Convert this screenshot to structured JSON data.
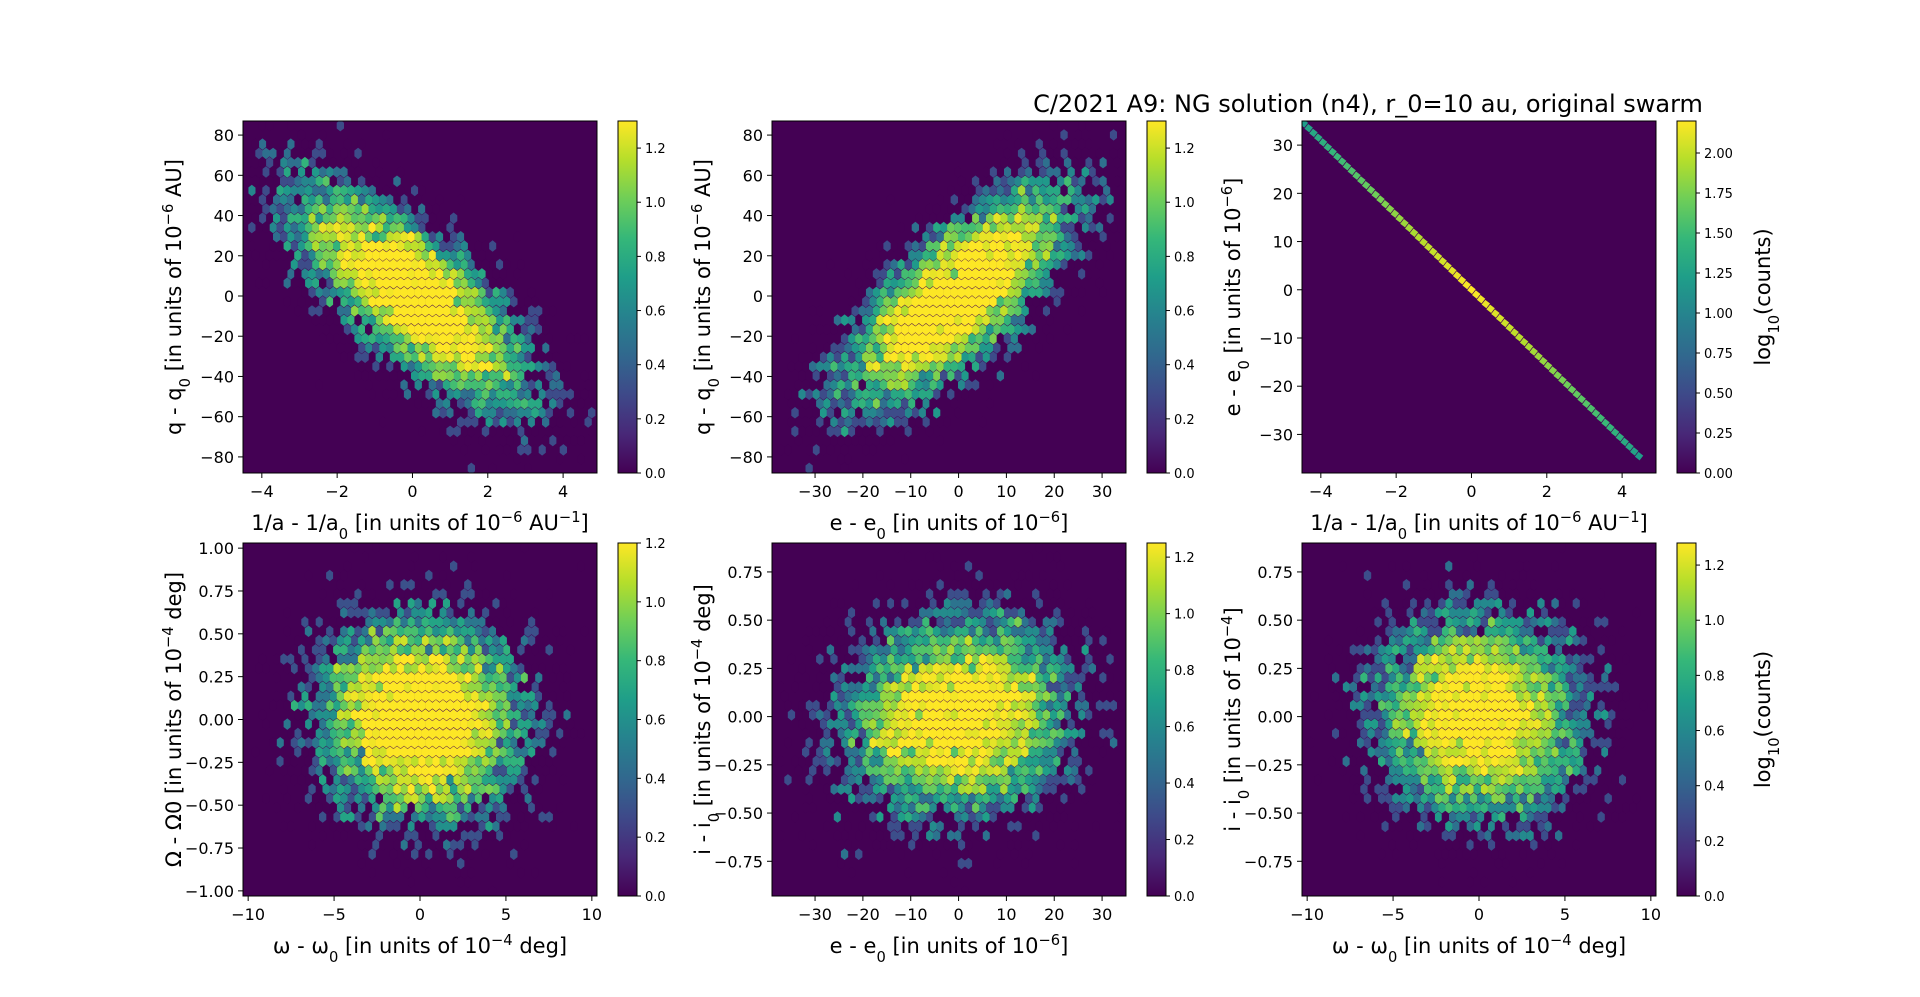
{
  "figure": {
    "title": "C/2021 A9: NG solution (n4), r_0=10 au, original swarm",
    "colormap": [
      "#440154",
      "#482878",
      "#3e4989",
      "#31688e",
      "#26828e",
      "#1f9e89",
      "#35b779",
      "#6ece58",
      "#b5de2b",
      "#fde725"
    ],
    "background_color": "#440154"
  },
  "chart_data": [
    {
      "type": "hexbin",
      "xlabel": "1/a - 1/a0 [in units of 10^-6 AU^-1]",
      "ylabel": "q - q0 [in units of 10^-6 AU]",
      "xlim": [
        -4.5,
        4.9
      ],
      "ylim": [
        -88,
        87
      ],
      "xticks": [
        -4,
        -2,
        0,
        2,
        4
      ],
      "yticks": [
        -80,
        -60,
        -40,
        -20,
        0,
        20,
        40,
        60,
        80
      ],
      "distribution": {
        "sx": 1.6,
        "sy": 28,
        "rho": -0.75,
        "n": 7000
      },
      "colorbar": {
        "max": 1.3,
        "ticks": [
          0.0,
          0.2,
          0.4,
          0.6,
          0.8,
          1.0,
          1.2
        ],
        "label": ""
      }
    },
    {
      "type": "hexbin",
      "xlabel": "e - e0 [in units of 10^-6]",
      "ylabel": "q - q0 [in units of 10^-6 AU]",
      "xlim": [
        -39,
        35
      ],
      "ylim": [
        -88,
        87
      ],
      "xticks": [
        -30,
        -20,
        -10,
        0,
        10,
        20,
        30
      ],
      "yticks": [
        -80,
        -60,
        -40,
        -20,
        0,
        20,
        40,
        60,
        80
      ],
      "distribution": {
        "sx": 12,
        "sy": 28,
        "rho": 0.75,
        "n": 7000
      },
      "colorbar": {
        "max": 1.3,
        "ticks": [
          0.0,
          0.2,
          0.4,
          0.6,
          0.8,
          1.0,
          1.2
        ],
        "label": ""
      }
    },
    {
      "type": "hexbin",
      "xlabel": "1/a - 1/a0 [in units of 10^-6 AU^-1]",
      "ylabel": "e - e0 [in units of 10^-6]",
      "xlim": [
        -4.5,
        4.9
      ],
      "ylim": [
        -38,
        35
      ],
      "xticks": [
        -4,
        -2,
        0,
        2,
        4
      ],
      "yticks": [
        -30,
        -20,
        -10,
        0,
        10,
        20,
        30
      ],
      "line": {
        "x": [
          -4.45,
          4.45
        ],
        "y": [
          34.5,
          -34.5
        ]
      },
      "colorbar": {
        "max": 2.2,
        "ticks": [
          0.0,
          0.25,
          0.5,
          0.75,
          1.0,
          1.25,
          1.5,
          1.75,
          2.0
        ],
        "label": "log10(counts)"
      }
    },
    {
      "type": "hexbin",
      "xlabel": "ω - ω0 [in units of 10^-4 deg]",
      "ylabel": "Ω - Ω0 [in units of 10^-4 deg]",
      "xlim": [
        -10.3,
        10.3
      ],
      "ylim": [
        -1.03,
        1.03
      ],
      "xticks": [
        -10,
        -5,
        0,
        5,
        10
      ],
      "yticks": [
        -1.0,
        -0.75,
        -0.5,
        -0.25,
        0.0,
        0.25,
        0.5,
        0.75,
        1.0
      ],
      "distribution": {
        "sx": 3.0,
        "sy": 0.3,
        "rho": -0.05,
        "n": 7000
      },
      "colorbar": {
        "max": 1.2,
        "ticks": [
          0.0,
          0.2,
          0.4,
          0.6,
          0.8,
          1.0,
          1.2
        ],
        "label": ""
      }
    },
    {
      "type": "hexbin",
      "xlabel": "e - e0 [in units of 10^-6]",
      "ylabel": "i - i0 [in units of 10^-4 deg]",
      "xlim": [
        -39,
        35
      ],
      "ylim": [
        -0.93,
        0.9
      ],
      "xticks": [
        -30,
        -20,
        -10,
        0,
        10,
        20,
        30
      ],
      "yticks": [
        -0.75,
        -0.5,
        -0.25,
        0.0,
        0.25,
        0.5,
        0.75
      ],
      "distribution": {
        "sx": 12,
        "sy": 0.26,
        "rho": 0.1,
        "n": 7000
      },
      "colorbar": {
        "max": 1.25,
        "ticks": [
          0.0,
          0.2,
          0.4,
          0.6,
          0.8,
          1.0,
          1.2
        ],
        "label": ""
      }
    },
    {
      "type": "hexbin",
      "xlabel": "ω - ω0 [in units of 10^-4 deg]",
      "ylabel": "i - i0 [in units of 10^-4]",
      "xlim": [
        -10.3,
        10.3
      ],
      "ylim": [
        -0.93,
        0.9
      ],
      "xticks": [
        -10,
        -5,
        0,
        5,
        10
      ],
      "yticks": [
        -0.75,
        -0.5,
        -0.25,
        0.0,
        0.25,
        0.5,
        0.75
      ],
      "distribution": {
        "sx": 3.0,
        "sy": 0.26,
        "rho": -0.05,
        "n": 7000
      },
      "colorbar": {
        "max": 1.28,
        "ticks": [
          0.0,
          0.2,
          0.4,
          0.6,
          0.8,
          1.0,
          1.2
        ],
        "label": "log10(counts)"
      }
    }
  ]
}
